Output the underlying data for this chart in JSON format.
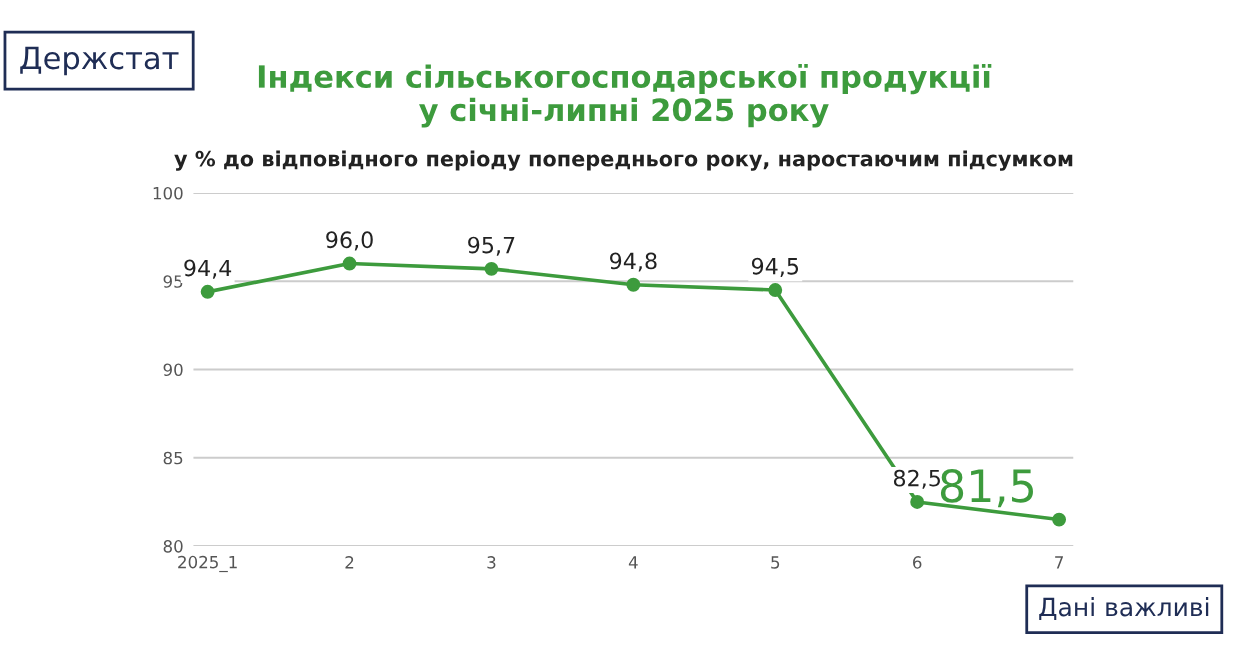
{
  "chart_data": {
    "type": "line",
    "title": "Індекси сільськогосподарської продукції\nу січні-липні 2025 року",
    "subtitle": "у % до відповідного періоду попереднього року, наростаючим підсумком",
    "categories": [
      "2025_1",
      "2",
      "3",
      "4",
      "5",
      "6",
      "7"
    ],
    "series": [
      {
        "color": "#3d9b3d",
        "values": [
          94.4,
          96.0,
          95.7,
          94.8,
          94.5,
          82.5,
          81.5
        ],
        "value_labels": [
          "94,4",
          "96,0",
          "95,7",
          "94,8",
          "94,5",
          "82,5",
          "81,5"
        ]
      }
    ],
    "ylim": [
      80,
      100
    ],
    "yticks": [
      80,
      85,
      90,
      95,
      100
    ],
    "grid": "y",
    "marker": "circle",
    "line_style": "solid",
    "legend": false,
    "annotations": [
      "Держстат",
      "Дані важливі"
    ]
  }
}
